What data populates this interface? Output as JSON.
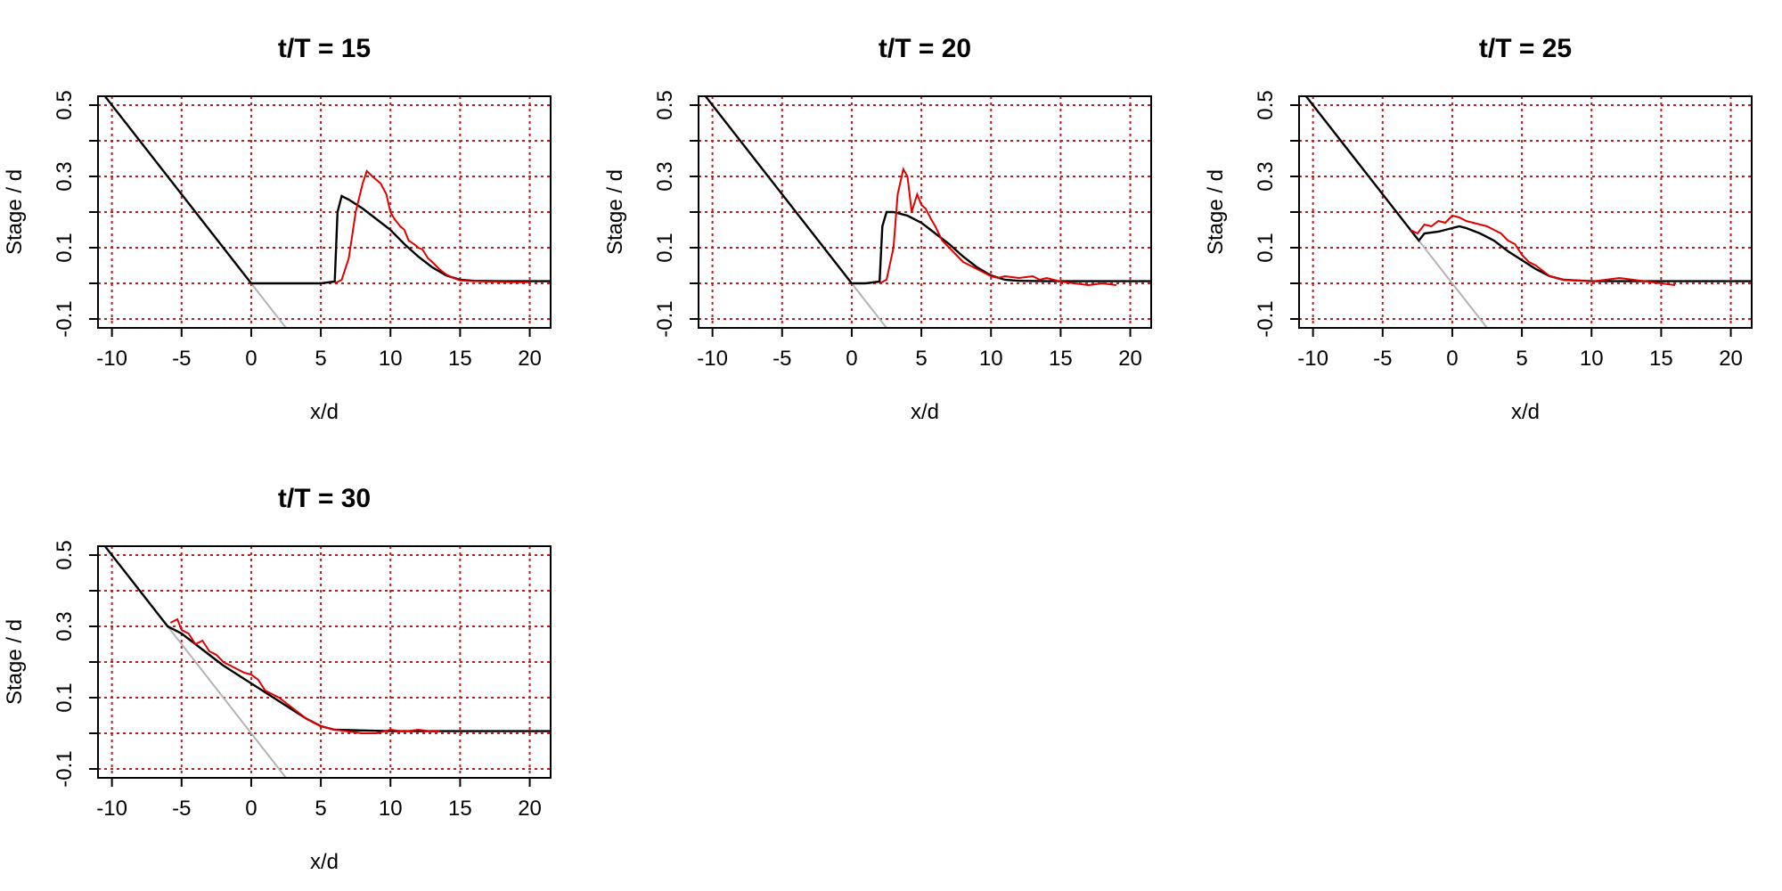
{
  "chart_data": [
    {
      "type": "line",
      "title": "t/T = 15",
      "xlabel": "x/d",
      "ylabel": "Stage / d",
      "xlim": [
        -11,
        21.5
      ],
      "ylim": [
        -0.125,
        0.525
      ],
      "xticks": [
        -10,
        -5,
        0,
        5,
        10,
        15,
        20
      ],
      "yticks": [
        -0.1,
        0.1,
        0.3,
        0.5
      ],
      "ygrid": [
        -0.1,
        0.0,
        0.1,
        0.2,
        0.3,
        0.4,
        0.5
      ],
      "grid": true,
      "series": [
        {
          "role": "bed",
          "color": "#b3b3b3",
          "x": [
            0,
            2.5
          ],
          "y": [
            0,
            -0.125
          ]
        },
        {
          "role": "model",
          "color": "#000000",
          "x": [
            -10.5,
            0,
            1,
            2,
            3,
            4,
            5,
            6,
            6.2,
            6.5,
            7,
            8,
            9,
            10,
            11,
            12,
            13,
            14,
            15,
            16,
            18,
            21.5
          ],
          "y": [
            0.525,
            0,
            0,
            0,
            0,
            0,
            0,
            0.005,
            0.2,
            0.245,
            0.235,
            0.21,
            0.18,
            0.15,
            0.11,
            0.075,
            0.045,
            0.022,
            0.01,
            0.007,
            0.006,
            0.006
          ]
        },
        {
          "role": "observed",
          "color": "#e00000",
          "x": [
            6,
            6.5,
            7,
            7.5,
            8,
            8.3,
            8.7,
            9,
            9.3,
            9.7,
            10,
            10.3,
            10.7,
            11,
            11.3,
            11.7,
            12,
            12.3,
            12.7,
            13,
            13.5,
            14,
            14.5,
            15,
            16,
            17,
            18,
            19,
            20
          ],
          "y": [
            0,
            0.01,
            0.07,
            0.2,
            0.28,
            0.315,
            0.3,
            0.29,
            0.28,
            0.25,
            0.2,
            0.18,
            0.16,
            0.15,
            0.12,
            0.11,
            0.1,
            0.095,
            0.07,
            0.06,
            0.04,
            0.025,
            0.015,
            0.008,
            0.006,
            0.005,
            0.004,
            0.003,
            0.003
          ]
        }
      ]
    },
    {
      "type": "line",
      "title": "t/T = 20",
      "xlabel": "x/d",
      "ylabel": "Stage / d",
      "xlim": [
        -11,
        21.5
      ],
      "ylim": [
        -0.125,
        0.525
      ],
      "xticks": [
        -10,
        -5,
        0,
        5,
        10,
        15,
        20
      ],
      "yticks": [
        -0.1,
        0.1,
        0.3,
        0.5
      ],
      "ygrid": [
        -0.1,
        0.0,
        0.1,
        0.2,
        0.3,
        0.4,
        0.5
      ],
      "grid": true,
      "series": [
        {
          "role": "bed",
          "color": "#b3b3b3",
          "x": [
            0,
            2.5
          ],
          "y": [
            0,
            -0.125
          ]
        },
        {
          "role": "model",
          "color": "#000000",
          "x": [
            -10.5,
            0,
            1,
            2,
            2.2,
            2.5,
            3,
            4,
            5,
            6,
            7,
            8,
            9,
            10,
            11,
            12,
            14,
            16,
            21.5
          ],
          "y": [
            0.525,
            0,
            0,
            0.005,
            0.16,
            0.2,
            0.2,
            0.19,
            0.17,
            0.14,
            0.11,
            0.075,
            0.045,
            0.022,
            0.01,
            0.007,
            0.006,
            0.006,
            0.006
          ]
        },
        {
          "role": "observed",
          "color": "#e00000",
          "x": [
            2,
            2.5,
            3,
            3.3,
            3.7,
            4,
            4.3,
            4.7,
            5,
            5.3,
            5.7,
            6,
            6.5,
            7,
            7.5,
            8,
            8.5,
            9,
            9.5,
            10,
            10.5,
            11,
            12,
            13,
            13.5,
            14,
            15,
            16,
            17,
            18,
            19
          ],
          "y": [
            0,
            0.01,
            0.1,
            0.25,
            0.32,
            0.3,
            0.2,
            0.25,
            0.22,
            0.21,
            0.18,
            0.16,
            0.12,
            0.1,
            0.08,
            0.06,
            0.05,
            0.04,
            0.03,
            0.02,
            0.015,
            0.02,
            0.015,
            0.02,
            0.01,
            0.015,
            0.005,
            0.0,
            -0.005,
            0.0,
            -0.005
          ]
        }
      ]
    },
    {
      "type": "line",
      "title": "t/T = 25",
      "xlabel": "x/d",
      "ylabel": "Stage / d",
      "xlim": [
        -11,
        21.5
      ],
      "ylim": [
        -0.125,
        0.525
      ],
      "xticks": [
        -10,
        -5,
        0,
        5,
        10,
        15,
        20
      ],
      "yticks": [
        -0.1,
        0.1,
        0.3,
        0.5
      ],
      "ygrid": [
        -0.1,
        0.0,
        0.1,
        0.2,
        0.3,
        0.4,
        0.5
      ],
      "grid": true,
      "series": [
        {
          "role": "bed",
          "color": "#b3b3b3",
          "x": [
            -2.4,
            2.5
          ],
          "y": [
            0.12,
            -0.125
          ]
        },
        {
          "role": "model",
          "color": "#000000",
          "x": [
            -10.5,
            -2.4,
            -2,
            -1,
            0,
            0.5,
            1,
            2,
            3,
            4,
            5,
            6,
            7,
            8,
            9,
            10,
            12,
            21.5
          ],
          "y": [
            0.525,
            0.12,
            0.14,
            0.145,
            0.155,
            0.16,
            0.155,
            0.14,
            0.12,
            0.09,
            0.065,
            0.04,
            0.02,
            0.01,
            0.008,
            0.006,
            0.006,
            0.006
          ]
        },
        {
          "role": "observed",
          "color": "#e00000",
          "x": [
            -3,
            -2.5,
            -2,
            -1.5,
            -1,
            -0.5,
            0,
            0.5,
            1,
            1.5,
            2,
            2.5,
            3,
            3.5,
            4,
            4.5,
            5,
            5.5,
            6,
            7,
            8,
            9,
            10,
            11,
            12,
            13,
            14,
            15,
            16
          ],
          "y": [
            0.15,
            0.14,
            0.165,
            0.16,
            0.175,
            0.17,
            0.19,
            0.185,
            0.175,
            0.17,
            0.165,
            0.16,
            0.15,
            0.14,
            0.12,
            0.11,
            0.08,
            0.06,
            0.05,
            0.02,
            0.01,
            0.008,
            0.005,
            0.01,
            0.015,
            0.01,
            0.005,
            0.0,
            -0.005
          ]
        }
      ]
    },
    {
      "type": "line",
      "title": "t/T = 30",
      "xlabel": "x/d",
      "ylabel": "Stage / d",
      "xlim": [
        -11,
        21.5
      ],
      "ylim": [
        -0.125,
        0.525
      ],
      "xticks": [
        -10,
        -5,
        0,
        5,
        10,
        15,
        20
      ],
      "yticks": [
        -0.1,
        0.1,
        0.3,
        0.5
      ],
      "ygrid": [
        -0.1,
        0.0,
        0.1,
        0.2,
        0.3,
        0.4,
        0.5
      ],
      "grid": true,
      "series": [
        {
          "role": "bed",
          "color": "#b3b3b3",
          "x": [
            -6,
            2.5
          ],
          "y": [
            0.3,
            -0.125
          ]
        },
        {
          "role": "model",
          "color": "#000000",
          "x": [
            -10.5,
            -6,
            -5,
            -4,
            -3,
            -2,
            -1,
            0,
            1,
            2,
            3,
            4,
            5,
            6,
            8,
            10,
            12,
            21.5
          ],
          "y": [
            0.525,
            0.3,
            0.28,
            0.25,
            0.22,
            0.19,
            0.165,
            0.14,
            0.115,
            0.09,
            0.065,
            0.04,
            0.02,
            0.01,
            0.008,
            0.006,
            0.006,
            0.006
          ]
        },
        {
          "role": "observed",
          "color": "#e00000",
          "x": [
            -5.8,
            -5.3,
            -5,
            -4.5,
            -4,
            -3.5,
            -3,
            -2.5,
            -2,
            -1.5,
            -1,
            -0.5,
            0,
            0.5,
            1,
            1.5,
            2,
            3,
            4,
            5,
            6,
            7,
            8,
            9,
            10,
            11,
            12,
            13,
            13.5
          ],
          "y": [
            0.31,
            0.32,
            0.29,
            0.28,
            0.25,
            0.26,
            0.23,
            0.22,
            0.2,
            0.19,
            0.18,
            0.17,
            0.165,
            0.15,
            0.12,
            0.11,
            0.1,
            0.07,
            0.04,
            0.02,
            0.01,
            0.005,
            0.0,
            0.0,
            0.01,
            0.005,
            0.01,
            0.005,
            0.005
          ]
        }
      ]
    }
  ]
}
